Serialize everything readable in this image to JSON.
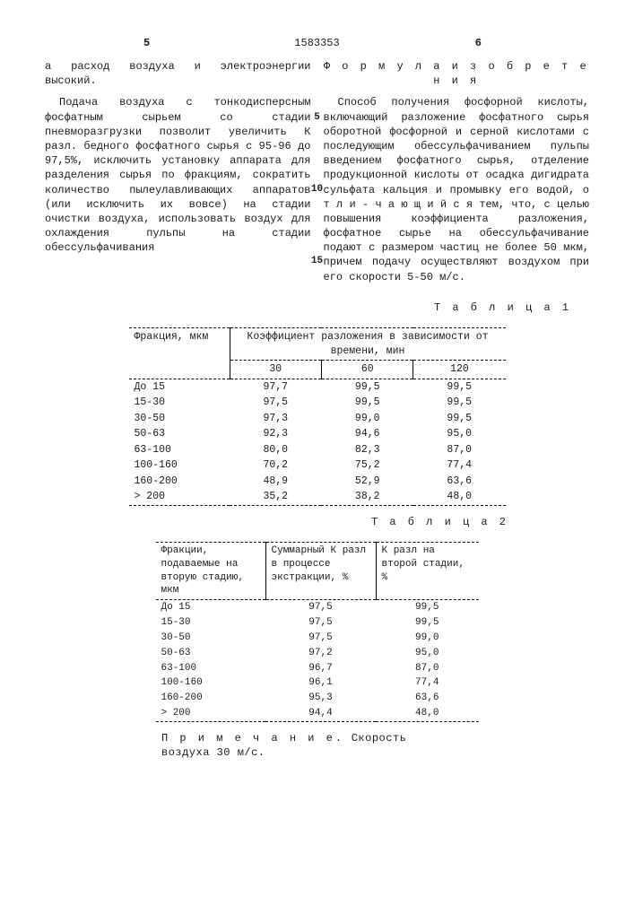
{
  "header": {
    "page_left": "5",
    "page_right": "6",
    "doc_number": "1583353"
  },
  "left_column": {
    "p1": "а расход воздуха и электроэнергии высокий.",
    "p2": "Подача воздуха с тонкодисперсным фосфатным сырьем со стадии пневморазгрузки позволит увеличить К разл. бедного фосфатного сырья с 95-96 до 97,5%, исключить установку аппарата для разделения сырья по фракциям, сократить количество пылеулавливающих аппаратов (или исключить их вовсе) на стадии очистки воздуха, использовать воздух для охлаждения пульпы на стадии обессульфачивания"
  },
  "right_column": {
    "formula_title": "Ф о р м у л а   и з о б р е т е н и я",
    "p1": "Способ получения фосфорной кислоты, включающий разложение фосфатного сырья оборотной фосфорной и серной кислотами с последующим обессульфачиванием пульпы введением фосфатного сырья, отделение продукционной кислоты от осадка дигидрата сульфата кальция и промывку его водой, о т л и - ч а ю щ и й с я  тем, что, с целью повышения коэффициента разложения, фосфатное сырье на обессульфачивание подают с размером частиц не более 50 мкм, причем подачу осуществляют воздухом при его скорости 5-50 м/с."
  },
  "markers": {
    "m5": "5",
    "m10": "10",
    "m15": "15"
  },
  "table1": {
    "title": "Т а б л и ц а 1",
    "col1_header": "Фракция, мкм",
    "col_group_header": "Коэффициент разложения в зависимости от времени, мин",
    "time_headers": [
      "30",
      "60",
      "120"
    ],
    "rows": [
      {
        "f": "До 15",
        "v": [
          "97,7",
          "99,5",
          "99,5"
        ]
      },
      {
        "f": "15-30",
        "v": [
          "97,5",
          "99,5",
          "99,5"
        ]
      },
      {
        "f": "30-50",
        "v": [
          "97,3",
          "99,0",
          "99,5"
        ]
      },
      {
        "f": "50-63",
        "v": [
          "92,3",
          "94,6",
          "95,0"
        ]
      },
      {
        "f": "63-100",
        "v": [
          "80,0",
          "82,3",
          "87,0"
        ]
      },
      {
        "f": "100-160",
        "v": [
          "70,2",
          "75,2",
          "77,4"
        ]
      },
      {
        "f": "160-200",
        "v": [
          "48,9",
          "52,9",
          "63,6"
        ]
      },
      {
        "f": "> 200",
        "v": [
          "35,2",
          "38,2",
          "48,0"
        ]
      }
    ]
  },
  "table2": {
    "title": "Т а б л и ц а 2",
    "col1_header": "Фракции, подаваемые на вторую стадию, мкм",
    "col2_header": "Суммарный К разл в процессе экстракции, %",
    "col3_header": "К разл на второй стадии, %",
    "rows": [
      {
        "f": "До 15",
        "a": "97,5",
        "b": "99,5"
      },
      {
        "f": "15-30",
        "a": "97,5",
        "b": "99,5"
      },
      {
        "f": "30-50",
        "a": "97,5",
        "b": "99,0"
      },
      {
        "f": "50-63",
        "a": "97,2",
        "b": "95,0"
      },
      {
        "f": "63-100",
        "a": "96,7",
        "b": "87,0"
      },
      {
        "f": "100-160",
        "a": "96,1",
        "b": "77,4"
      },
      {
        "f": "160-200",
        "a": "95,3",
        "b": "63,6"
      },
      {
        "f": "> 200",
        "a": "94,4",
        "b": "48,0"
      }
    ]
  },
  "note": {
    "label": "П р и м е ч а н и е.",
    "text": "Скорость воздуха 30 м/с."
  }
}
